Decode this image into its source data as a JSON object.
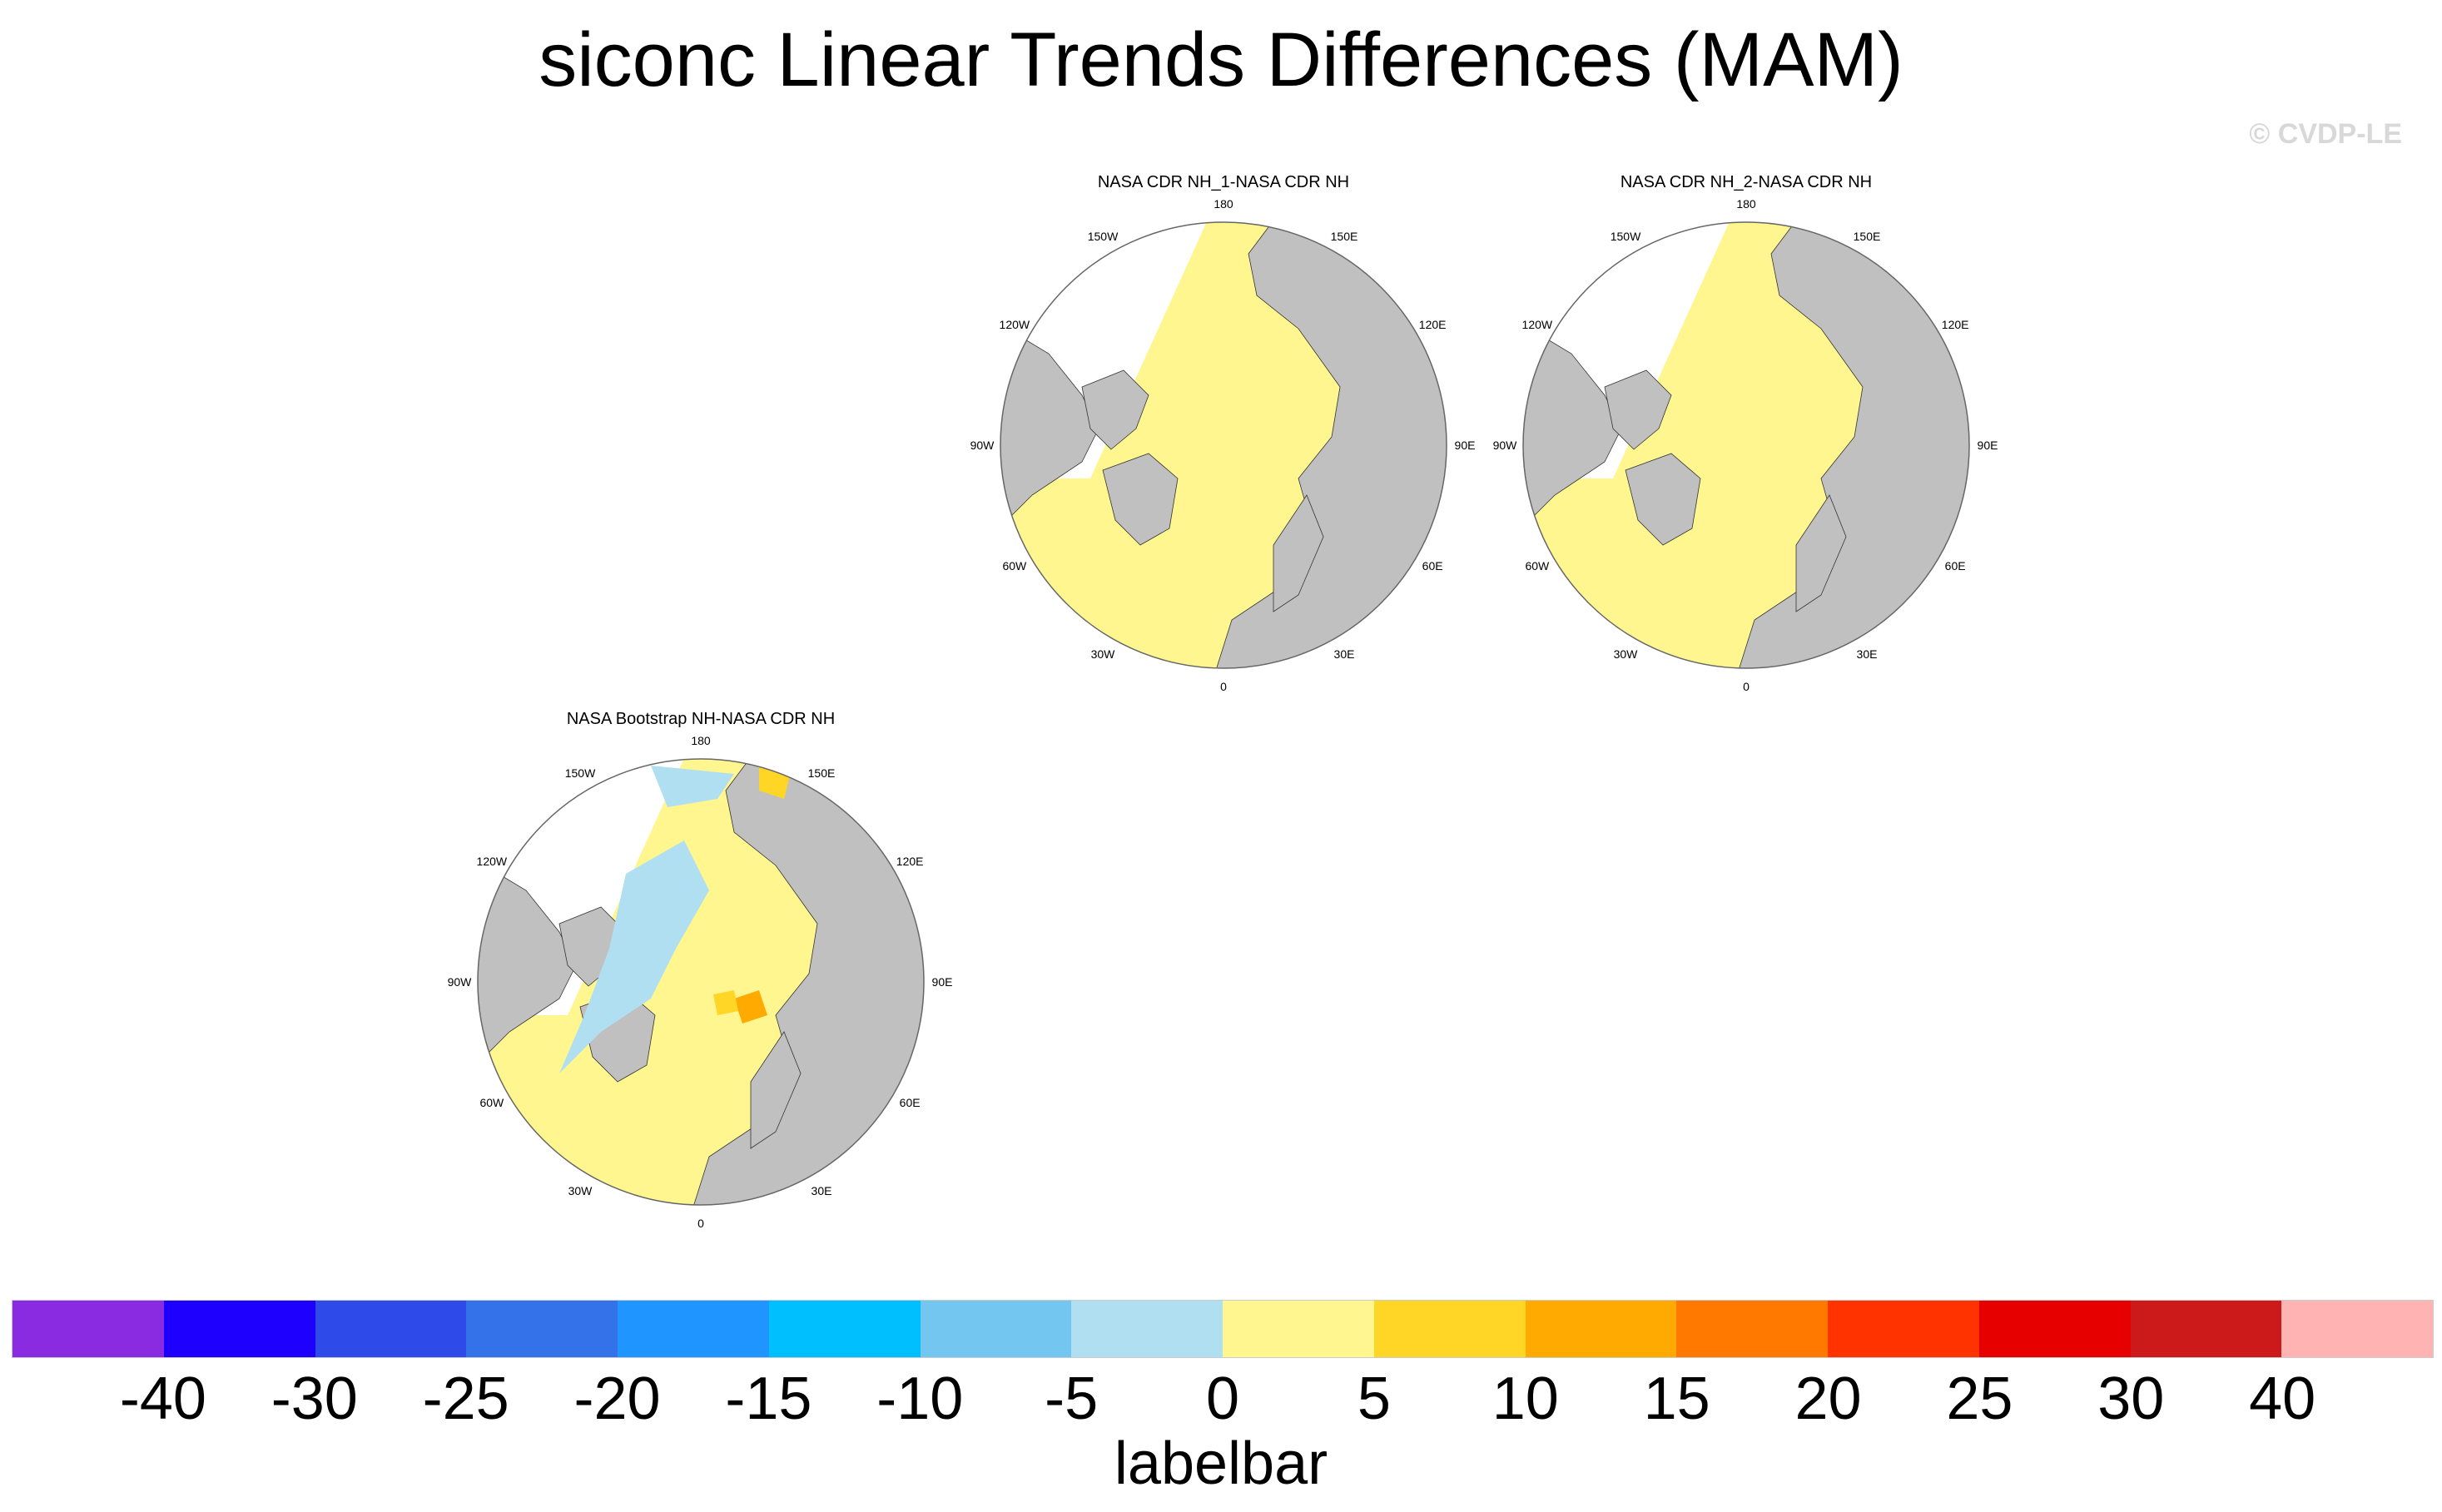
{
  "title": "siconc Linear Trends Differences (MAM)",
  "copyright": "© CVDP-LE",
  "panels": [
    {
      "title": "NASA CDR NH_1-NASA CDR NH"
    },
    {
      "title": "NASA CDR NH_2-NASA CDR NH"
    },
    {
      "title": "NASA Bootstrap NH-NASA CDR NH"
    }
  ],
  "longitudes": [
    "180",
    "150E",
    "120E",
    "90E",
    "60E",
    "30E",
    "0",
    "30W",
    "60W",
    "90W",
    "120W",
    "150W"
  ],
  "colors": {
    "land": "#c0c0c0",
    "zero_band": "#fff68f",
    "missing": "#ffffff"
  },
  "labelbar": {
    "title": "labelbar",
    "colors": [
      "#8a2be2",
      "#1e00ff",
      "#2e4bea",
      "#3372e8",
      "#1f96ff",
      "#00bfff",
      "#73c6f0",
      "#b0dff2",
      "#fff68f",
      "#ffd626",
      "#ffaa00",
      "#ff7800",
      "#ff3300",
      "#e60000",
      "#cc1a1a",
      "#ffb3b3"
    ],
    "ticks": [
      "-40",
      "-30",
      "-25",
      "-20",
      "-15",
      "-10",
      "-5",
      "0",
      "5",
      "10",
      "15",
      "20",
      "25",
      "30",
      "40"
    ]
  }
}
